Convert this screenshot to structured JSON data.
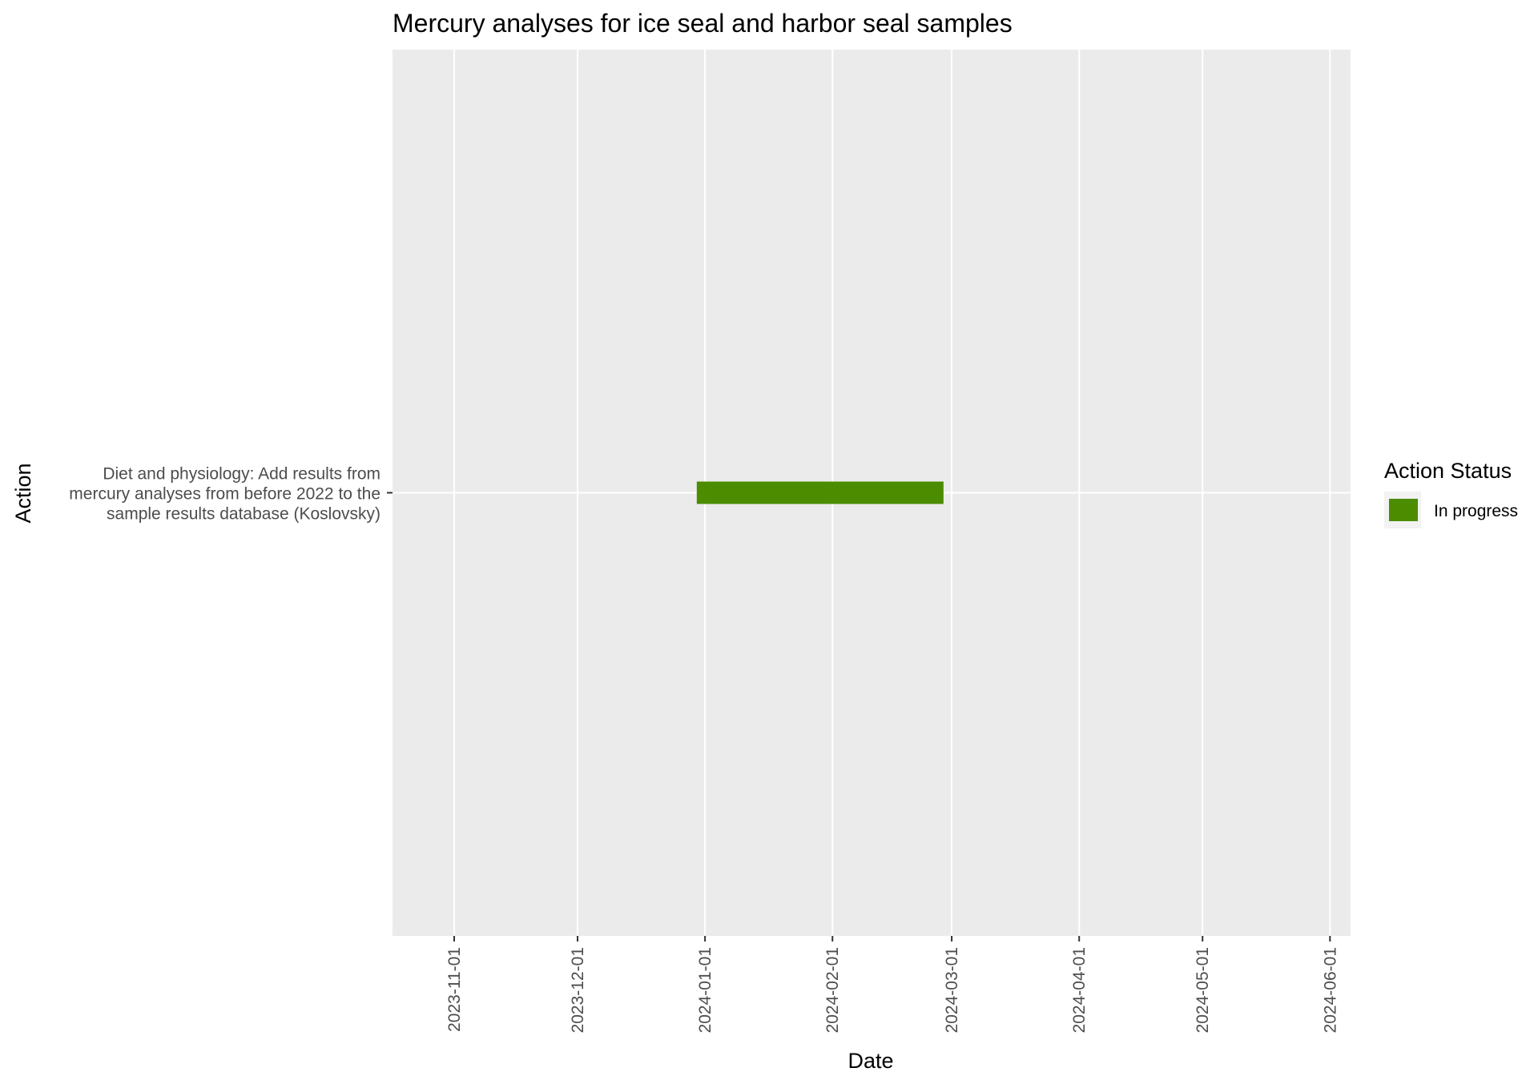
{
  "chart_data": {
    "type": "gantt",
    "title": "Mercury analyses for ice seal and harbor seal samples",
    "xlabel": "Date",
    "ylabel": "Action",
    "x_ticks": [
      "2023-11-01",
      "2023-12-01",
      "2024-01-01",
      "2024-02-01",
      "2024-03-01",
      "2024-04-01",
      "2024-05-01",
      "2024-06-01"
    ],
    "x_range": [
      "2023-10-17",
      "2024-06-06"
    ],
    "grid": true,
    "legend": {
      "title": "Action Status",
      "position": "right",
      "entries": [
        {
          "label": "In progress",
          "color": "#4b8c00"
        }
      ]
    },
    "tasks": [
      {
        "label_lines": [
          "Diet and physiology: Add results from",
          "mercury analyses from before 2022 to the",
          "sample results database (Koslovsky)"
        ],
        "start": "2023-12-30",
        "end": "2024-02-28",
        "status": "In progress",
        "color": "#4b8c00"
      }
    ]
  },
  "colors": {
    "panel_background": "#ebebeb",
    "grid": "#ffffff",
    "axis_text": "#4d4d4d",
    "title_text": "#000000"
  }
}
